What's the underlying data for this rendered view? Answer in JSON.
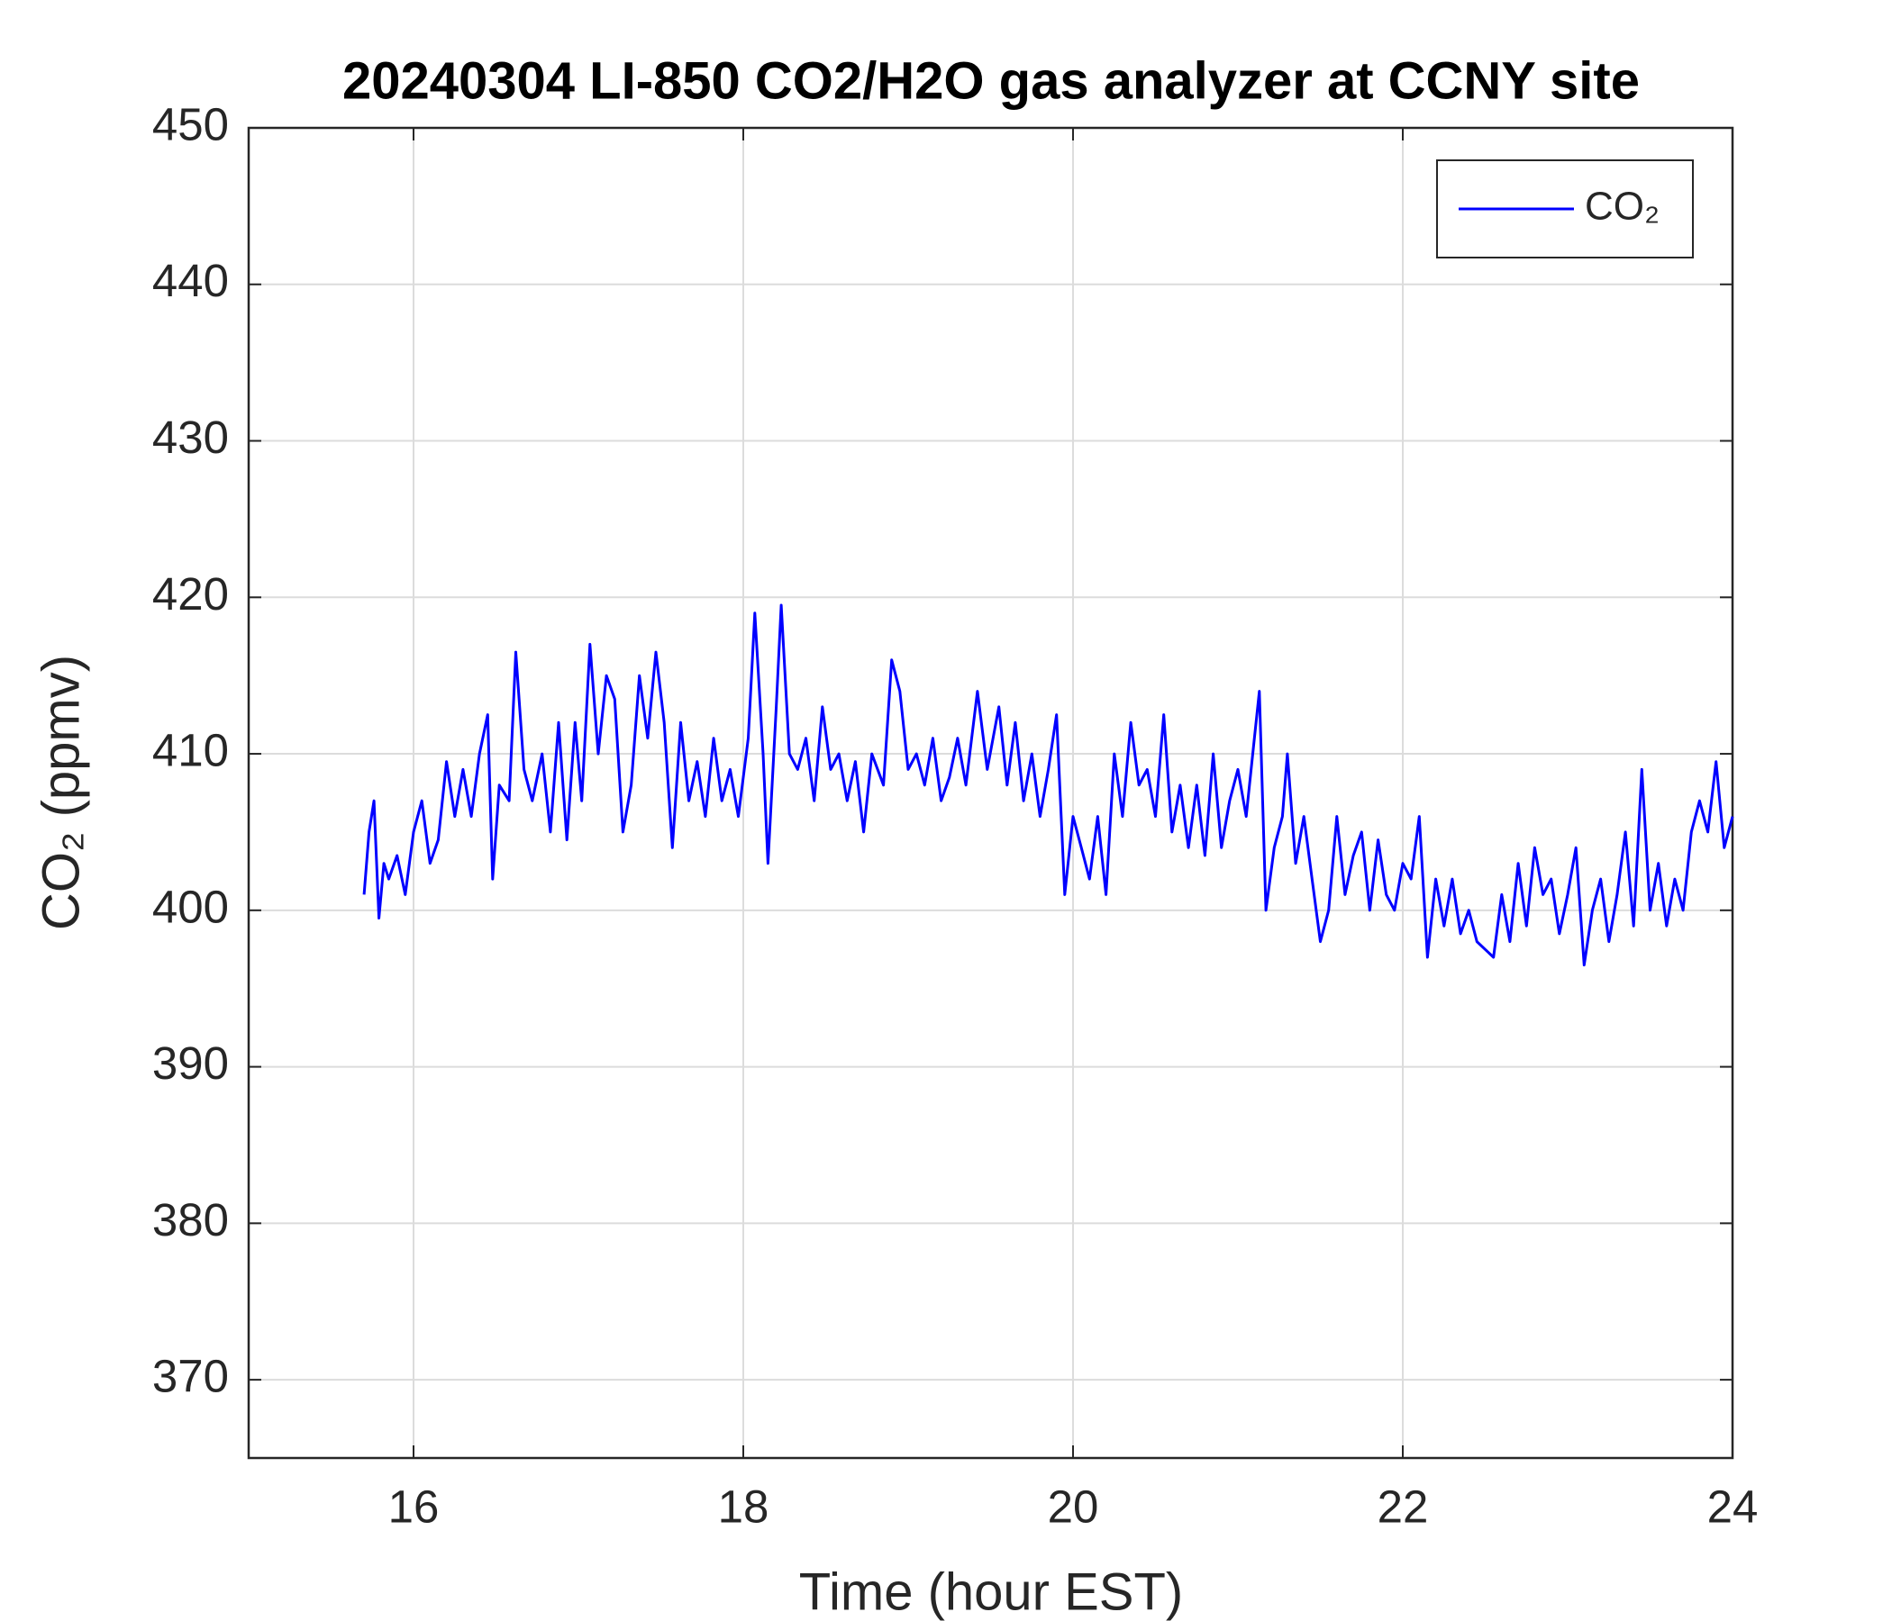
{
  "chart_data": {
    "type": "line",
    "title": "20240304 LI-850 CO2/H2O gas analyzer at CCNY site",
    "xlabel": "Time (hour EST)",
    "ylabel": "CO₂ (ppmv)",
    "xlim": [
      15,
      24
    ],
    "xticks": [
      16,
      18,
      20,
      22,
      24
    ],
    "ylim": [
      365,
      450
    ],
    "yticks": [
      370,
      380,
      390,
      400,
      410,
      420,
      430,
      440,
      450
    ],
    "grid": true,
    "legend": "top-right",
    "x": [
      15.7,
      15.73,
      15.76,
      15.79,
      15.82,
      15.85,
      15.9,
      15.95,
      16.0,
      16.05,
      16.1,
      16.15,
      16.2,
      16.25,
      16.3,
      16.35,
      16.4,
      16.45,
      16.48,
      16.52,
      16.58,
      16.62,
      16.67,
      16.72,
      16.78,
      16.83,
      16.88,
      16.93,
      16.98,
      17.02,
      17.07,
      17.12,
      17.17,
      17.22,
      17.27,
      17.32,
      17.37,
      17.42,
      17.47,
      17.52,
      17.57,
      17.62,
      17.67,
      17.72,
      17.77,
      17.82,
      17.87,
      17.92,
      17.97,
      18.03,
      18.07,
      18.12,
      18.15,
      18.2,
      18.23,
      18.28,
      18.33,
      18.38,
      18.43,
      18.48,
      18.53,
      18.58,
      18.63,
      18.68,
      18.73,
      18.78,
      18.85,
      18.9,
      18.95,
      19.0,
      19.05,
      19.1,
      19.15,
      19.2,
      19.25,
      19.3,
      19.35,
      19.42,
      19.48,
      19.55,
      19.6,
      19.65,
      19.7,
      19.75,
      19.8,
      19.85,
      19.9,
      19.95,
      20.0,
      20.05,
      20.1,
      20.15,
      20.2,
      20.25,
      20.3,
      20.35,
      20.4,
      20.45,
      20.5,
      20.55,
      20.6,
      20.65,
      20.7,
      20.75,
      20.8,
      20.85,
      20.9,
      20.95,
      21.0,
      21.05,
      21.1,
      21.13,
      21.17,
      21.22,
      21.27,
      21.3,
      21.35,
      21.4,
      21.45,
      21.5,
      21.55,
      21.6,
      21.65,
      21.7,
      21.75,
      21.8,
      21.85,
      21.9,
      21.95,
      22.0,
      22.05,
      22.1,
      22.15,
      22.2,
      22.25,
      22.3,
      22.35,
      22.4,
      22.45,
      22.5,
      22.55,
      22.6,
      22.65,
      22.7,
      22.75,
      22.8,
      22.85,
      22.9,
      22.95,
      23.0,
      23.05,
      23.1,
      23.15,
      23.2,
      23.25,
      23.3,
      23.35,
      23.4,
      23.45,
      23.5,
      23.55,
      23.6,
      23.65,
      23.7,
      23.75,
      23.8,
      23.85,
      23.9,
      23.95,
      24.0
    ],
    "series": [
      {
        "name": "CO₂",
        "color": "#0000ff",
        "values": [
          401,
          405,
          407,
          399.5,
          403,
          402,
          403.5,
          401,
          405,
          407,
          403,
          404.5,
          409.5,
          406,
          409,
          406,
          410,
          412.5,
          402,
          408,
          407,
          416.5,
          409,
          407,
          410,
          405,
          412,
          404.5,
          412,
          407,
          417,
          410,
          415,
          413.5,
          405,
          408,
          415,
          411,
          416.5,
          412,
          404,
          412,
          407,
          409.5,
          406,
          411,
          407,
          409,
          406,
          411,
          419,
          410,
          403,
          413,
          419.5,
          410,
          409,
          411,
          407,
          413,
          409,
          410,
          407,
          409.5,
          405,
          410,
          408,
          416,
          414,
          409,
          410,
          408,
          411,
          407,
          408.5,
          411,
          408,
          414,
          409,
          413,
          408,
          412,
          407,
          410,
          406,
          409,
          412.5,
          401,
          406,
          404,
          402,
          406,
          401,
          410,
          406,
          412,
          408,
          409,
          406,
          412.5,
          405,
          408,
          404,
          408,
          403.5,
          410,
          404,
          407,
          409,
          406,
          411,
          414,
          400,
          404,
          406,
          410,
          403,
          406,
          402,
          398,
          400,
          406,
          401,
          403.5,
          405,
          400,
          404.5,
          401,
          400,
          403,
          402,
          406,
          397,
          402,
          399,
          402,
          398.5,
          400,
          398,
          397.5,
          397,
          401,
          398,
          403,
          399,
          404,
          401,
          402,
          398.5,
          401,
          404,
          396.5,
          400,
          402,
          398,
          401,
          405,
          399,
          409,
          400,
          403,
          399,
          402,
          400,
          405,
          407,
          405,
          409.5,
          404,
          406
        ]
      }
    ]
  }
}
